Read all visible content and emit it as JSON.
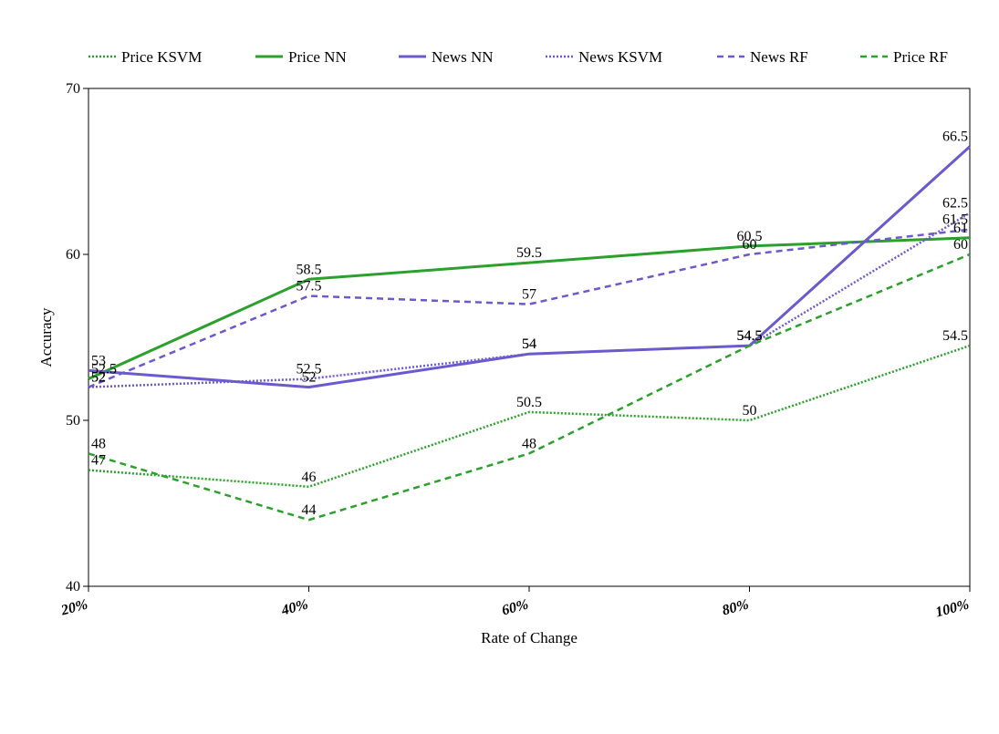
{
  "chart_data": {
    "type": "line",
    "xlabel": "Rate of Change",
    "ylabel": "Accuracy",
    "categories": [
      "20%",
      "40%",
      "60%",
      "80%",
      "100%"
    ],
    "ylim": [
      40,
      70
    ],
    "yticks": [
      40,
      50,
      60,
      70
    ],
    "legend_position": "top",
    "grid": false,
    "series": [
      {
        "name": "Price KSVM",
        "values": [
          47,
          46,
          50.5,
          50,
          54.5
        ],
        "color": "#2ca02c",
        "style": "dotted"
      },
      {
        "name": "Price NN",
        "values": [
          52.5,
          58.5,
          59.5,
          60.5,
          61
        ],
        "color": "#2ca02c",
        "style": "solid"
      },
      {
        "name": "News NN",
        "values": [
          53,
          52,
          54,
          54.5,
          66.5
        ],
        "color": "#6a5acd",
        "style": "solid"
      },
      {
        "name": "News KSVM",
        "values": [
          52,
          52.5,
          54,
          54.5,
          62.5
        ],
        "color": "#6a5acd",
        "style": "dotted"
      },
      {
        "name": "News RF",
        "values": [
          52,
          57.5,
          57,
          60,
          61.5
        ],
        "color": "#6a5acd",
        "style": "dashed"
      },
      {
        "name": "Price RF",
        "values": [
          48,
          44,
          48,
          54.5,
          60
        ],
        "color": "#2ca02c",
        "style": "dashed"
      }
    ]
  }
}
